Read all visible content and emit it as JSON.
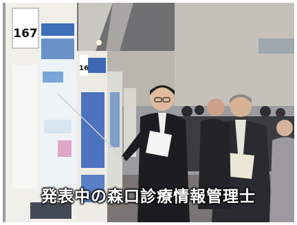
{
  "photo": {
    "caption": "発表中の森口診療情報管理士",
    "poster_numbers": [
      "167",
      "16"
    ]
  }
}
